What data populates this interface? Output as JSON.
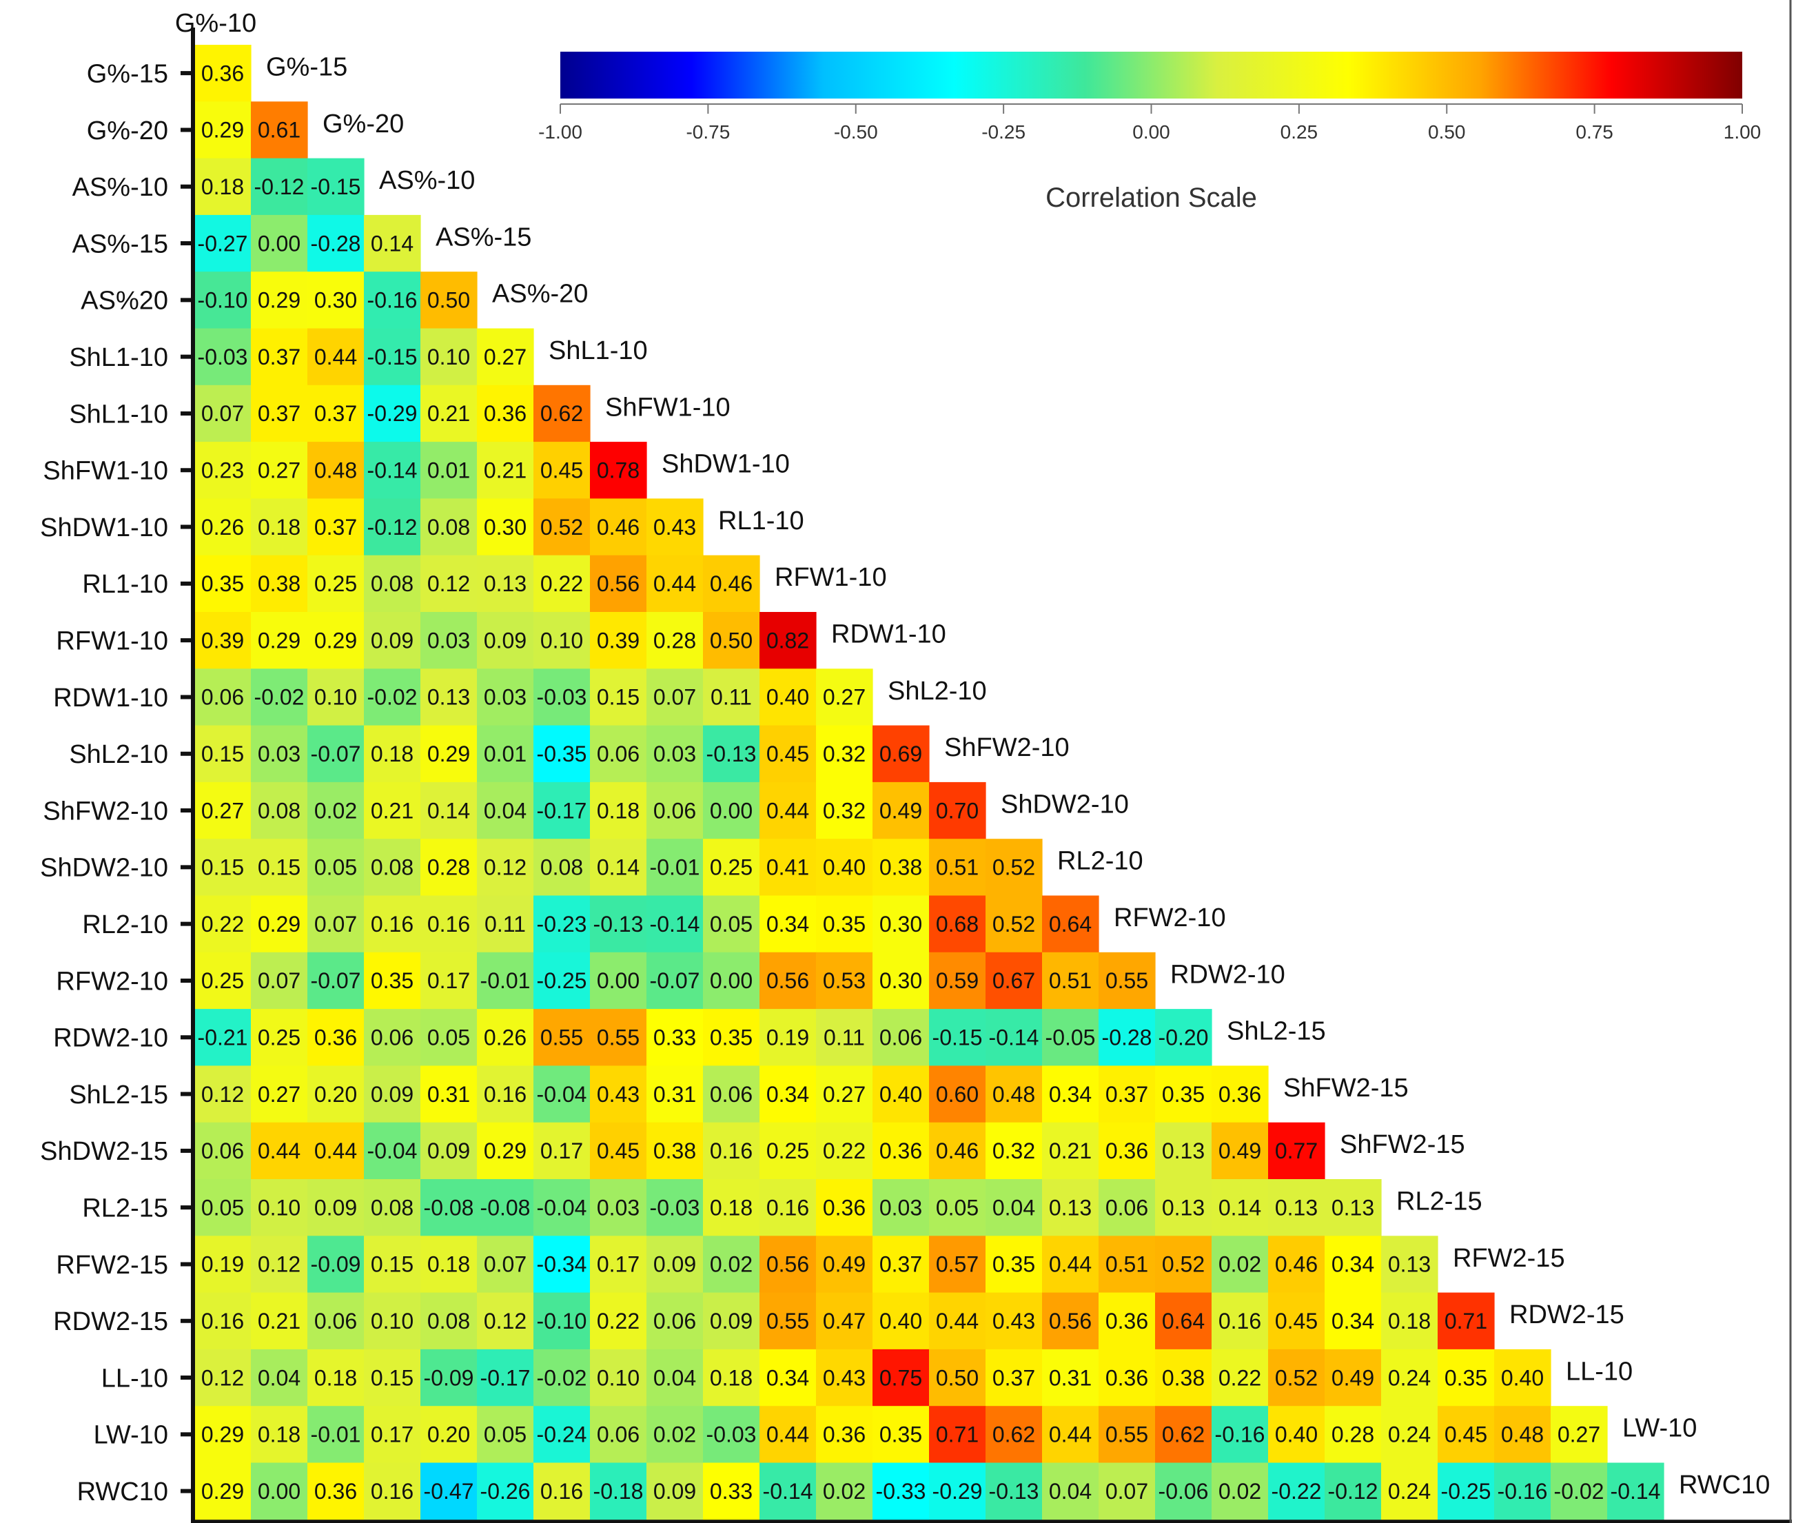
{
  "chart_data": {
    "type": "heatmap",
    "title": "",
    "subtitle": "",
    "matrix_layout": "lower-triangular correlation matrix; column labels shown along the diagonal",
    "first_column_label": "G%-10",
    "row_labels": [
      "G%-15",
      "G%-20",
      "AS%-10",
      "AS%-15",
      "AS%20",
      "ShL1-10",
      "ShL1-10",
      "ShFW1-10",
      "ShDW1-10",
      "RL1-10",
      "RFW1-10",
      "RDW1-10",
      "ShL2-10",
      "ShFW2-10",
      "ShDW2-10",
      "RL2-10",
      "RFW2-10",
      "RDW2-10",
      "ShL2-15",
      "ShDW2-15",
      "RL2-15",
      "RFW2-15",
      "RDW2-15",
      "LL-10",
      "LW-10",
      "RWC10"
    ],
    "diagonal_labels": [
      "G%-15",
      "G%-20",
      "AS%-10",
      "AS%-15",
      "AS%-20",
      "ShL1-10",
      "ShFW1-10",
      "ShDW1-10",
      "RL1-10",
      "RFW1-10",
      "RDW1-10",
      "ShL2-10",
      "ShFW2-10",
      "ShDW2-10",
      "RL2-10",
      "RFW2-10",
      "RDW2-10",
      "ShL2-15",
      "ShFW2-15",
      "ShFW2-15",
      "RL2-15",
      "RFW2-15",
      "RDW2-15",
      "LL-10",
      "LW-10",
      "RWC10"
    ],
    "values": [
      [
        "0.36"
      ],
      [
        "0.29",
        "0.61"
      ],
      [
        "0.18",
        "-0.12",
        "-0.15"
      ],
      [
        "-0.27",
        "0.00",
        "-0.28",
        "0.14"
      ],
      [
        "-0.10",
        "0.29",
        "0.30",
        "-0.16",
        "0.50"
      ],
      [
        "-0.03",
        "0.37",
        "0.44",
        "-0.15",
        "0.10",
        "0.27"
      ],
      [
        "0.07",
        "0.37",
        "0.37",
        "-0.29",
        "0.21",
        "0.36",
        "0.62"
      ],
      [
        "0.23",
        "0.27",
        "0.48",
        "-0.14",
        "0.01",
        "0.21",
        "0.45",
        "0.78"
      ],
      [
        "0.26",
        "0.18",
        "0.37",
        "-0.12",
        "0.08",
        "0.30",
        "0.52",
        "0.46",
        "0.43"
      ],
      [
        "0.35",
        "0.38",
        "0.25",
        "0.08",
        "0.12",
        "0.13",
        "0.22",
        "0.56",
        "0.44",
        "0.46"
      ],
      [
        "0.39",
        "0.29",
        "0.29",
        "0.09",
        "0.03",
        "0.09",
        "0.10",
        "0.39",
        "0.28",
        "0.50",
        "0.82"
      ],
      [
        "0.06",
        "-0.02",
        "0.10",
        "-0.02",
        "0.13",
        "0.03",
        "-0.03",
        "0.15",
        "0.07",
        "0.11",
        "0.40",
        "0.27"
      ],
      [
        "0.15",
        "0.03",
        "-0.07",
        "0.18",
        "0.29",
        "0.01",
        "-0.35",
        "0.06",
        "0.03",
        "-0.13",
        "0.45",
        "0.32",
        "0.69"
      ],
      [
        "0.27",
        "0.08",
        "0.02",
        "0.21",
        "0.14",
        "0.04",
        "-0.17",
        "0.18",
        "0.06",
        "0.00",
        "0.44",
        "0.32",
        "0.49",
        "0.70"
      ],
      [
        "0.15",
        "0.15",
        "0.05",
        "0.08",
        "0.28",
        "0.12",
        "0.08",
        "0.14",
        "-0.01",
        "0.25",
        "0.41",
        "0.40",
        "0.38",
        "0.51",
        "0.52"
      ],
      [
        "0.22",
        "0.29",
        "0.07",
        "0.16",
        "0.16",
        "0.11",
        "-0.23",
        "-0.13",
        "-0.14",
        "0.05",
        "0.34",
        "0.35",
        "0.30",
        "0.68",
        "0.52",
        "0.64"
      ],
      [
        "0.25",
        "0.07",
        "-0.07",
        "0.35",
        "0.17",
        "-0.01",
        "-0.25",
        "0.00",
        "-0.07",
        "0.00",
        "0.56",
        "0.53",
        "0.30",
        "0.59",
        "0.67",
        "0.51",
        "0.55"
      ],
      [
        "-0.21",
        "0.25",
        "0.36",
        "0.06",
        "0.05",
        "0.26",
        "0.55",
        "0.55",
        "0.33",
        "0.35",
        "0.19",
        "0.11",
        "0.06",
        "-0.15",
        "-0.14",
        "-0.05",
        "-0.28",
        "-0.20"
      ],
      [
        "0.12",
        "0.27",
        "0.20",
        "0.09",
        "0.31",
        "0.16",
        "-0.04",
        "0.43",
        "0.31",
        "0.06",
        "0.34",
        "0.27",
        "0.40",
        "0.60",
        "0.48",
        "0.34",
        "0.37",
        "0.35",
        "0.36"
      ],
      [
        "0.06",
        "0.44",
        "0.44",
        "-0.04",
        "0.09",
        "0.29",
        "0.17",
        "0.45",
        "0.38",
        "0.16",
        "0.25",
        "0.22",
        "0.36",
        "0.46",
        "0.32",
        "0.21",
        "0.36",
        "0.13",
        "0.49",
        "0.77"
      ],
      [
        "0.05",
        "0.10",
        "0.09",
        "0.08",
        "-0.08",
        "-0.08",
        "-0.04",
        "0.03",
        "-0.03",
        "0.18",
        "0.16",
        "0.36",
        "0.03",
        "0.05",
        "0.04",
        "0.13",
        "0.06",
        "0.13",
        "0.14",
        "0.13",
        "0.13"
      ],
      [
        "0.19",
        "0.12",
        "-0.09",
        "0.15",
        "0.18",
        "0.07",
        "-0.34",
        "0.17",
        "0.09",
        "0.02",
        "0.56",
        "0.49",
        "0.37",
        "0.57",
        "0.35",
        "0.44",
        "0.51",
        "0.52",
        "0.02",
        "0.46",
        "0.34",
        "0.13"
      ],
      [
        "0.16",
        "0.21",
        "0.06",
        "0.10",
        "0.08",
        "0.12",
        "-0.10",
        "0.22",
        "0.06",
        "0.09",
        "0.55",
        "0.47",
        "0.40",
        "0.44",
        "0.43",
        "0.56",
        "0.36",
        "0.64",
        "0.16",
        "0.45",
        "0.34",
        "0.18",
        "0.71"
      ],
      [
        "0.12",
        "0.04",
        "0.18",
        "0.15",
        "-0.09",
        "-0.17",
        "-0.02",
        "0.10",
        "0.04",
        "0.18",
        "0.34",
        "0.43",
        "0.75",
        "0.50",
        "0.37",
        "0.31",
        "0.36",
        "0.38",
        "0.22",
        "0.52",
        "0.49",
        "0.24",
        "0.35",
        "0.40"
      ],
      [
        "0.29",
        "0.18",
        "-0.01",
        "0.17",
        "0.20",
        "0.05",
        "-0.24",
        "0.06",
        "0.02",
        "-0.03",
        "0.44",
        "0.36",
        "0.35",
        "0.71",
        "0.62",
        "0.44",
        "0.55",
        "0.62",
        "-0.16",
        "0.40",
        "0.28",
        "0.24",
        "0.45",
        "0.48",
        "0.27"
      ],
      [
        "0.29",
        "0.00",
        "0.36",
        "0.16",
        "-0.47",
        "-0.26",
        "0.16",
        "-0.18",
        "0.09",
        "0.33",
        "-0.14",
        "0.02",
        "-0.33",
        "-0.29",
        "-0.13",
        "0.04",
        "0.07",
        "-0.06",
        "0.02",
        "-0.22",
        "-0.12",
        "0.24",
        "-0.25",
        "-0.16",
        "-0.02",
        "-0.14"
      ]
    ],
    "colorbar": {
      "label": "Correlation Scale",
      "range": [
        -1,
        1
      ],
      "ticks": [
        "-1.00",
        "-0.75",
        "-0.50",
        "-0.25",
        "0.00",
        "0.25",
        "0.50",
        "0.75",
        "1.00"
      ],
      "colormap": "jet",
      "colors": [
        "#00008f",
        "#0000ff",
        "#00bfff",
        "#00ffff",
        "#3fe79a",
        "#d9f040",
        "#ffff00",
        "#ffa500",
        "#ff0000",
        "#800000"
      ]
    }
  }
}
